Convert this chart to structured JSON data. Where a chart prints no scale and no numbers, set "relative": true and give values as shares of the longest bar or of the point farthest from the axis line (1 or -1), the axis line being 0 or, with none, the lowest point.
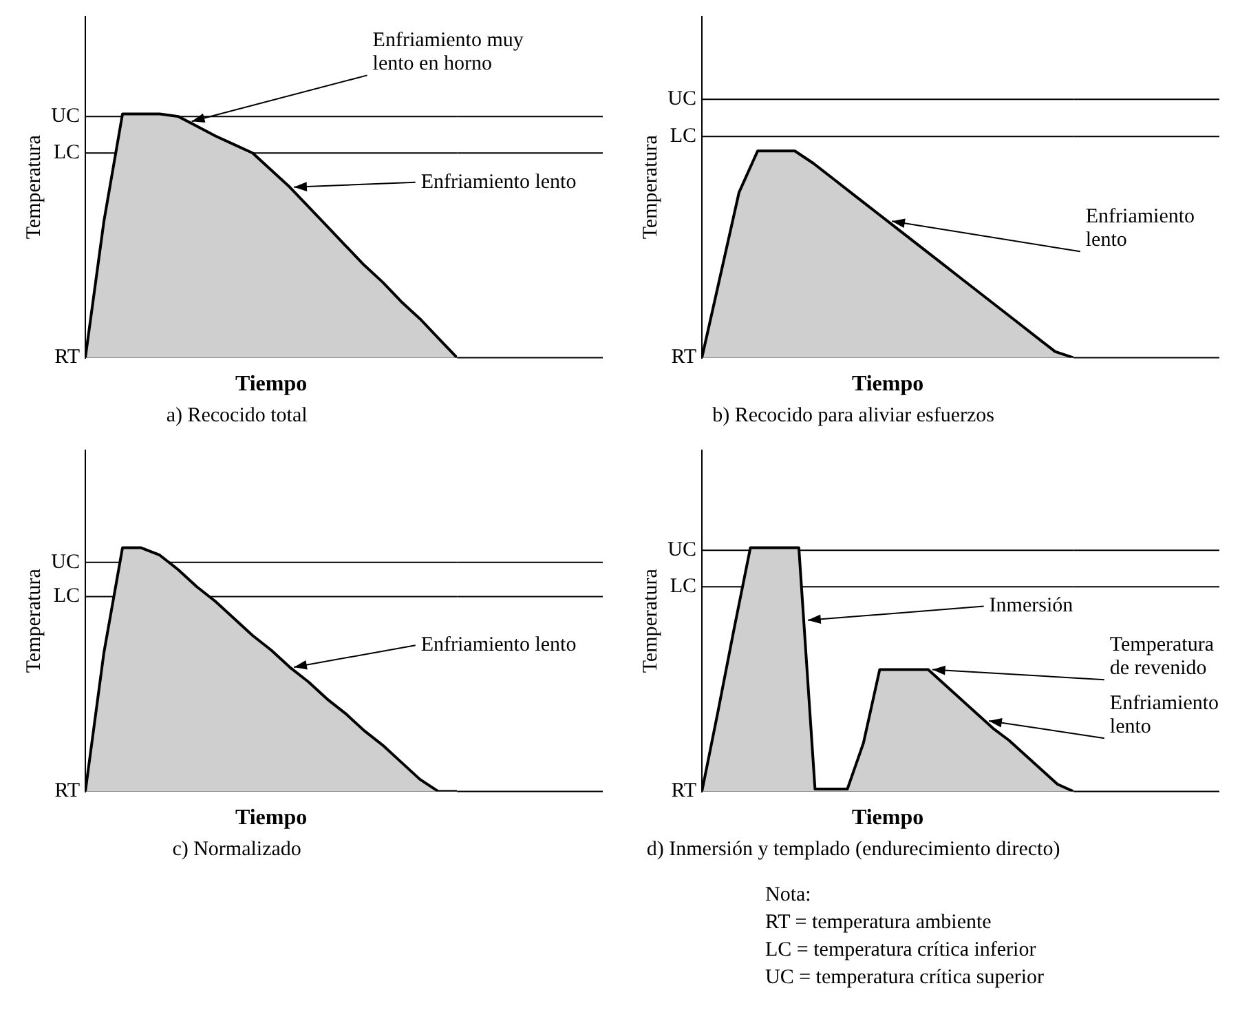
{
  "chart_data": [
    {
      "type": "area",
      "relative": true,
      "title": "a) Recocido total",
      "xlabel": "Tiempo",
      "ylabel": "Temperatura",
      "categories": [
        null,
        null,
        null,
        null,
        null,
        null,
        null,
        null,
        null,
        null,
        null,
        null,
        null,
        null,
        null,
        null,
        null,
        null,
        null,
        null,
        null
      ],
      "series": [
        {
          "color": "#cfcfcf",
          "values": [
            0,
            0.56,
            1,
            1,
            1,
            0.99,
            0.95,
            0.91,
            0.875,
            0.84,
            0.77,
            0.7,
            0.62,
            0.54,
            0.46,
            0.38,
            0.31,
            0.23,
            0.16,
            0.08,
            0
          ]
        }
      ],
      "ref_lines": [
        {
          "axis": "y",
          "value": 0,
          "label": "RT"
        },
        {
          "axis": "y",
          "value": 0.84,
          "label": "LC"
        },
        {
          "axis": "y",
          "value": 0.99,
          "label": "UC"
        }
      ],
      "annotations": [
        "Enfriamiento muy lento en horno",
        "Enfriamiento lento"
      ]
    },
    {
      "type": "area",
      "relative": true,
      "title": "b) Recocido para aliviar esfuerzos",
      "xlabel": "Tiempo",
      "ylabel": "Temperatura",
      "categories": [
        null,
        null,
        null,
        null,
        null,
        null,
        null,
        null,
        null,
        null,
        null,
        null,
        null,
        null,
        null,
        null,
        null,
        null,
        null,
        null,
        null
      ],
      "series": [
        {
          "color": "#cfcfcf",
          "values": [
            0,
            0.4,
            0.8,
            1,
            1,
            1,
            0.94,
            0.87,
            0.8,
            0.73,
            0.66,
            0.59,
            0.52,
            0.45,
            0.38,
            0.31,
            0.24,
            0.17,
            0.1,
            0.03,
            0
          ]
        }
      ],
      "ref_lines": [
        {
          "axis": "y",
          "value": 0,
          "label": "RT"
        },
        {
          "axis": "y",
          "value": 1.07,
          "label": "LC"
        },
        {
          "axis": "y",
          "value": 1.25,
          "label": "UC"
        }
      ],
      "annotations": [
        "Enfriamiento lento"
      ]
    },
    {
      "type": "area",
      "relative": true,
      "title": "c) Normalizado",
      "xlabel": "Tiempo",
      "ylabel": "Temperatura",
      "categories": [
        null,
        null,
        null,
        null,
        null,
        null,
        null,
        null,
        null,
        null,
        null,
        null,
        null,
        null,
        null,
        null,
        null,
        null,
        null,
        null,
        null
      ],
      "series": [
        {
          "color": "#cfcfcf",
          "values": [
            0,
            0.57,
            1,
            1,
            0.97,
            0.91,
            0.84,
            0.78,
            0.71,
            0.64,
            0.58,
            0.51,
            0.45,
            0.38,
            0.32,
            0.25,
            0.19,
            0.12,
            0.05,
            0,
            0
          ]
        }
      ],
      "ref_lines": [
        {
          "axis": "y",
          "value": 0,
          "label": "RT"
        },
        {
          "axis": "y",
          "value": 0.8,
          "label": "LC"
        },
        {
          "axis": "y",
          "value": 0.94,
          "label": "UC"
        }
      ],
      "annotations": [
        "Enfriamiento lento"
      ]
    },
    {
      "type": "area",
      "relative": true,
      "title": "d) Inmersión y templado (endurecimiento directo)",
      "xlabel": "Tiempo",
      "ylabel": "Temperatura",
      "categories": [
        null,
        null,
        null,
        null,
        null,
        null,
        null,
        null,
        null,
        null,
        null,
        null,
        null,
        null,
        null,
        null,
        null,
        null,
        null,
        null,
        null,
        null,
        null,
        null
      ],
      "series": [
        {
          "color": "#cfcfcf",
          "values": [
            0,
            0.33,
            0.67,
            1,
            1,
            1,
            1,
            0.01,
            0.01,
            0.01,
            0.2,
            0.5,
            0.5,
            0.5,
            0.5,
            0.44,
            0.38,
            0.32,
            0.26,
            0.21,
            0.15,
            0.09,
            0.03,
            0
          ]
        }
      ],
      "ref_lines": [
        {
          "axis": "y",
          "value": 0,
          "label": "RT"
        },
        {
          "axis": "y",
          "value": 0.84,
          "label": "LC"
        },
        {
          "axis": "y",
          "value": 0.99,
          "label": "UC"
        }
      ],
      "annotations": [
        "Inmersión",
        "Temperatura de revenido",
        "Enfriamiento lento"
      ]
    },
    {
      "type": "other",
      "title": "Nota:",
      "annotations": [
        "RT = temperatura ambiente",
        "LC = temperatura crítica inferior",
        "UC = temperatura crítica superior"
      ]
    }
  ]
}
